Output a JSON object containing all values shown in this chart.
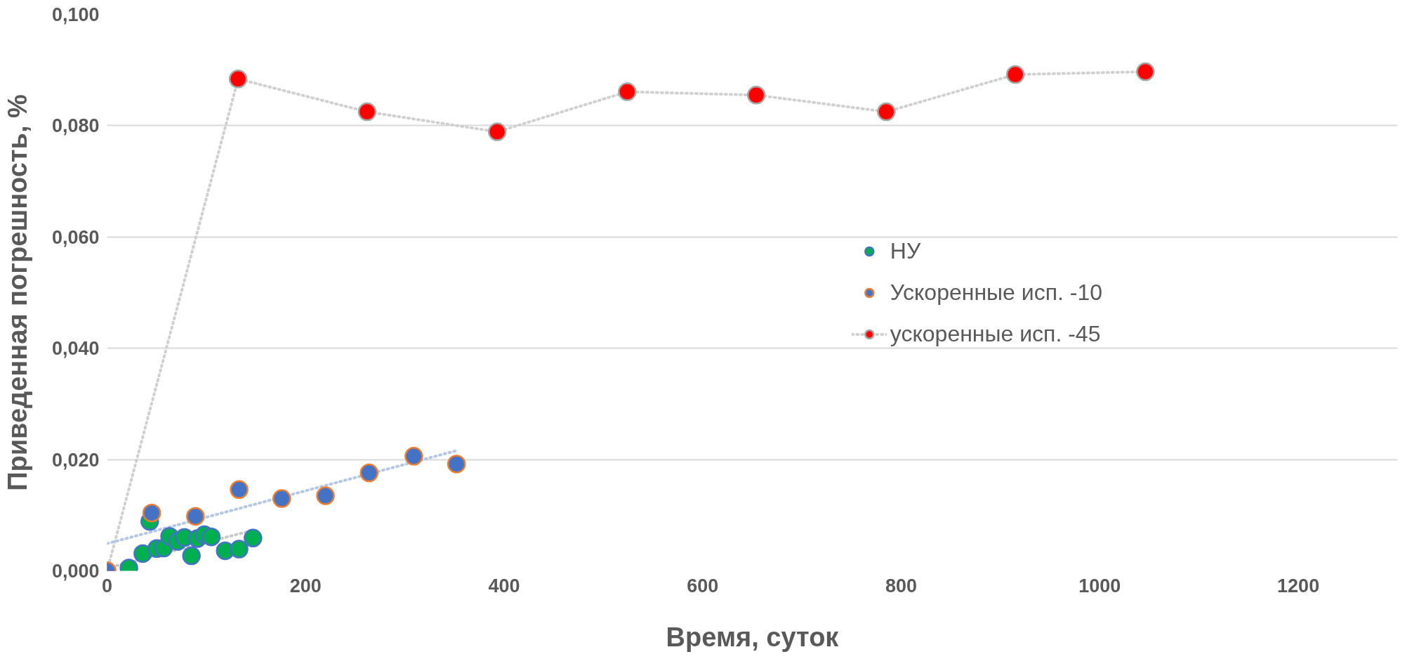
{
  "chart_data": {
    "type": "scatter",
    "xlabel": "Время, суток",
    "ylabel": "Приведенная погрешность, %",
    "xlim": [
      0,
      1300
    ],
    "ylim": [
      0,
      0.1
    ],
    "xticks": [
      0,
      200,
      400,
      600,
      800,
      1000,
      1200
    ],
    "yticks": [
      {
        "value": 0,
        "label": "0,000"
      },
      {
        "value": 0.02,
        "label": "0,020"
      },
      {
        "value": 0.04,
        "label": "0,040"
      },
      {
        "value": 0.06,
        "label": "0,060"
      },
      {
        "value": 0.08,
        "label": "0,080"
      },
      {
        "value": 0.1,
        "label": "0,100"
      }
    ],
    "grid": "y",
    "legend": "right",
    "marker": "circle",
    "series": [
      {
        "name": "ускоренные исп. -45",
        "type": "line",
        "line_style": "dotted",
        "marker": "circle",
        "color": "#ff0000",
        "x": [
          0,
          132,
          262,
          393,
          524,
          654,
          785,
          915,
          1046
        ],
        "values": [
          0.0,
          0.0884,
          0.0825,
          0.0789,
          0.0861,
          0.0855,
          0.0825,
          0.0892,
          0.0897
        ]
      },
      {
        "type": "line",
        "line_style": "dotted",
        "marker": "none",
        "color": "#c8c8c8",
        "x": [
          0,
          147
        ],
        "values": [
          0.0005,
          0.0073
        ]
      },
      {
        "type": "line",
        "line_style": "dotted",
        "marker": "none",
        "color": "#b4c7e7",
        "x": [
          0,
          352
        ],
        "values": [
          0.0049,
          0.0216
        ]
      },
      {
        "name": "НУ",
        "color": "#00b050",
        "x": [
          22,
          36,
          43,
          50,
          57,
          63,
          71,
          78,
          85,
          91,
          98,
          105,
          119,
          133,
          147
        ],
        "values": [
          0.0005,
          0.0031,
          0.0089,
          0.004,
          0.0041,
          0.0062,
          0.0053,
          0.006,
          0.0027,
          0.0058,
          0.0065,
          0.0061,
          0.0036,
          0.0039,
          0.0059
        ]
      },
      {
        "name": "Ускоренные исп. -10",
        "color": "#4472c4",
        "x": [
          0,
          45,
          89,
          133,
          176,
          220,
          264,
          309,
          352
        ],
        "values": [
          0.0,
          0.0104,
          0.0098,
          0.0146,
          0.013,
          0.0135,
          0.0176,
          0.0206,
          0.0192
        ]
      }
    ]
  }
}
